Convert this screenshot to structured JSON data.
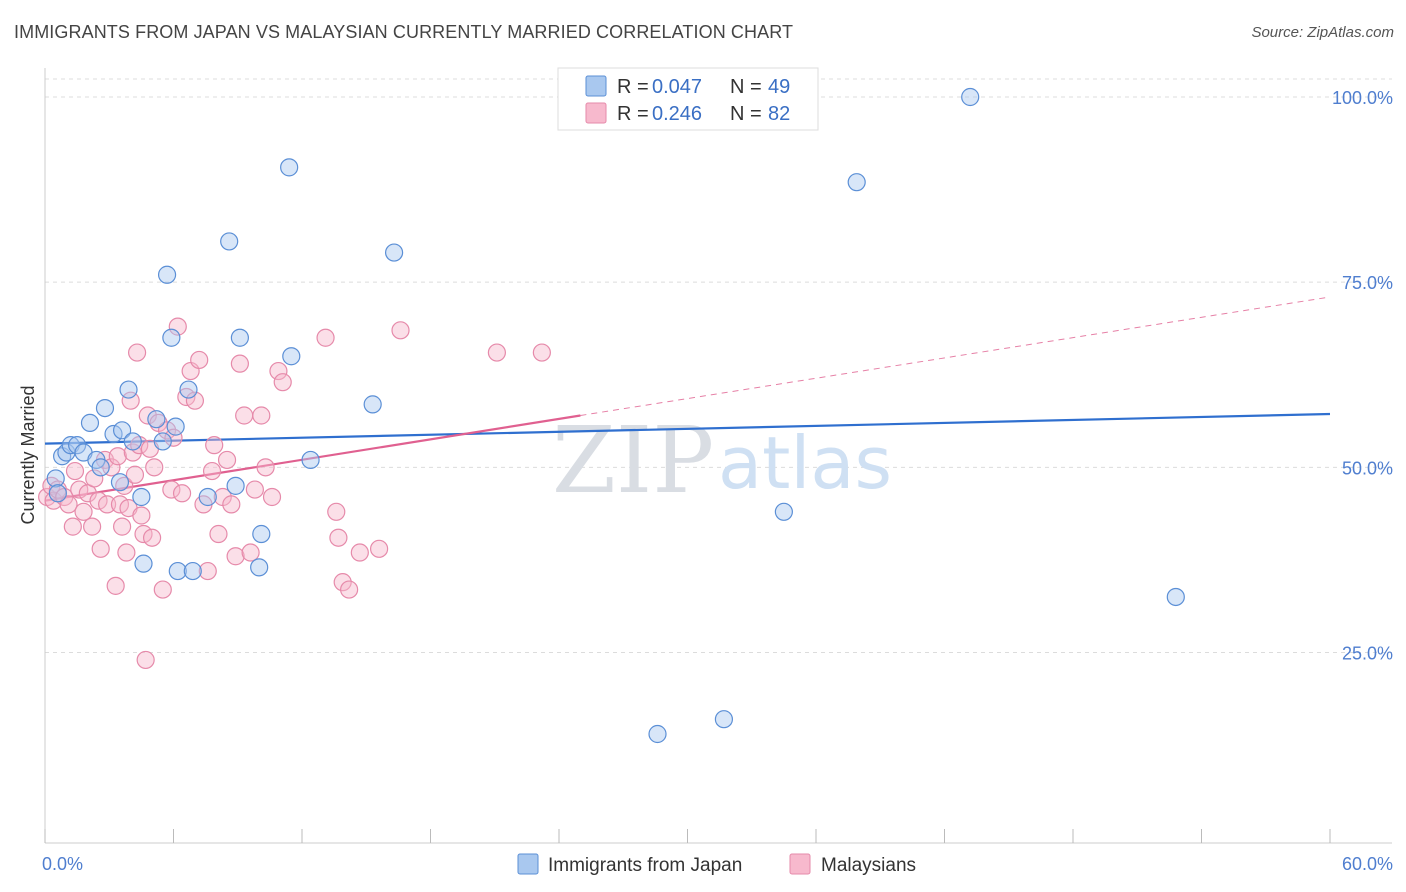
{
  "title": "IMMIGRANTS FROM JAPAN VS MALAYSIAN CURRENTLY MARRIED CORRELATION CHART",
  "source": "Source: ZipAtlas.com",
  "watermark": {
    "zip": "ZIP",
    "atlas": "atlas"
  },
  "legend": {
    "rows": [
      {
        "r_label": "R = ",
        "r_value": "0.047",
        "n_label": "N = ",
        "n_value": "49"
      },
      {
        "r_label": "R = ",
        "r_value": "0.246",
        "n_label": "N = ",
        "n_value": "82"
      }
    ]
  },
  "colors": {
    "japan_fill": "#a9c8ef",
    "japan_stroke": "#5b8fd6",
    "japan_line": "#2f6fcf",
    "malaysian_fill": "#f7b9cd",
    "malaysian_stroke": "#e68aaa",
    "malaysian_line": "#e06090"
  },
  "chart_data": {
    "type": "scatter",
    "xlabel": "",
    "ylabel": "Currently Married",
    "xlim": [
      0,
      60
    ],
    "ylim": [
      0,
      105
    ],
    "x_tick_labels": [
      {
        "value": 0,
        "label": "0.0%"
      },
      {
        "value": 60,
        "label": "60.0%"
      }
    ],
    "y_tick_labels": [
      {
        "value": 25,
        "label": "25.0%"
      },
      {
        "value": 50,
        "label": "50.0%"
      },
      {
        "value": 75,
        "label": "75.0%"
      },
      {
        "value": 100,
        "label": "100.0%"
      }
    ],
    "grid": "horizontal dashed",
    "legend_position": "top-center",
    "series": [
      {
        "name": "Immigrants from Japan",
        "trend": {
          "x": [
            0,
            60
          ],
          "y": [
            53.2,
            57.2
          ],
          "style": "solid"
        },
        "points": [
          [
            0.5,
            48.5
          ],
          [
            0.6,
            46.5
          ],
          [
            0.8,
            51.5
          ],
          [
            1.0,
            52.0
          ],
          [
            1.2,
            53.0
          ],
          [
            1.5,
            53.0
          ],
          [
            1.8,
            52.0
          ],
          [
            2.1,
            56.0
          ],
          [
            2.4,
            51.0
          ],
          [
            2.6,
            50.0
          ],
          [
            2.8,
            58.0
          ],
          [
            3.2,
            54.5
          ],
          [
            3.5,
            48.0
          ],
          [
            3.6,
            55.0
          ],
          [
            3.9,
            60.5
          ],
          [
            4.1,
            53.5
          ],
          [
            4.5,
            46.0
          ],
          [
            4.6,
            37.0
          ],
          [
            5.2,
            56.5
          ],
          [
            5.5,
            53.5
          ],
          [
            5.7,
            76.0
          ],
          [
            5.9,
            67.5
          ],
          [
            6.1,
            55.5
          ],
          [
            6.2,
            36.0
          ],
          [
            6.7,
            60.5
          ],
          [
            6.9,
            36.0
          ],
          [
            7.6,
            46.0
          ],
          [
            8.6,
            80.5
          ],
          [
            8.9,
            47.5
          ],
          [
            9.1,
            67.5
          ],
          [
            10.0,
            36.5
          ],
          [
            10.1,
            41.0
          ],
          [
            11.4,
            90.5
          ],
          [
            11.5,
            65.0
          ],
          [
            12.4,
            51.0
          ],
          [
            15.3,
            58.5
          ],
          [
            16.3,
            79.0
          ],
          [
            28.6,
            14.0
          ],
          [
            31.7,
            16.0
          ],
          [
            34.5,
            44.0
          ],
          [
            37.9,
            88.5
          ],
          [
            43.2,
            100.0
          ],
          [
            52.8,
            32.5
          ]
        ]
      },
      {
        "name": "Malaysians",
        "trend": {
          "x": [
            0,
            25
          ],
          "y": [
            45.5,
            57.0
          ],
          "style": "solid",
          "extension": {
            "x": [
              25,
              60
            ],
            "y": [
              57.0,
              73.0
            ],
            "style": "dashed"
          }
        },
        "points": [
          [
            0.1,
            46.0
          ],
          [
            0.3,
            47.5
          ],
          [
            0.4,
            45.5
          ],
          [
            0.6,
            47.0
          ],
          [
            0.9,
            46.0
          ],
          [
            1.1,
            45.0
          ],
          [
            1.3,
            42.0
          ],
          [
            1.4,
            49.5
          ],
          [
            1.6,
            47.0
          ],
          [
            1.8,
            44.0
          ],
          [
            2.0,
            46.5
          ],
          [
            2.2,
            42.0
          ],
          [
            2.3,
            48.5
          ],
          [
            2.5,
            45.5
          ],
          [
            2.6,
            39.0
          ],
          [
            2.8,
            51.0
          ],
          [
            2.9,
            45.0
          ],
          [
            3.1,
            50.0
          ],
          [
            3.3,
            34.0
          ],
          [
            3.4,
            51.5
          ],
          [
            3.5,
            45.0
          ],
          [
            3.6,
            42.0
          ],
          [
            3.7,
            47.5
          ],
          [
            3.8,
            38.5
          ],
          [
            3.9,
            44.5
          ],
          [
            4.0,
            59.0
          ],
          [
            4.1,
            52.0
          ],
          [
            4.2,
            49.0
          ],
          [
            4.3,
            65.5
          ],
          [
            4.4,
            53.0
          ],
          [
            4.5,
            43.5
          ],
          [
            4.6,
            41.0
          ],
          [
            4.7,
            24.0
          ],
          [
            4.8,
            57.0
          ],
          [
            4.9,
            52.5
          ],
          [
            5.0,
            40.5
          ],
          [
            5.1,
            50.0
          ],
          [
            5.3,
            56.0
          ],
          [
            5.5,
            33.5
          ],
          [
            5.7,
            55.0
          ],
          [
            5.9,
            47.0
          ],
          [
            6.0,
            54.0
          ],
          [
            6.2,
            69.0
          ],
          [
            6.4,
            46.5
          ],
          [
            6.6,
            59.5
          ],
          [
            6.8,
            63.0
          ],
          [
            7.0,
            59.0
          ],
          [
            7.2,
            64.5
          ],
          [
            7.4,
            45.0
          ],
          [
            7.6,
            36.0
          ],
          [
            7.8,
            49.5
          ],
          [
            7.9,
            53.0
          ],
          [
            8.1,
            41.0
          ],
          [
            8.3,
            46.0
          ],
          [
            8.5,
            51.0
          ],
          [
            8.7,
            45.0
          ],
          [
            8.9,
            38.0
          ],
          [
            9.1,
            64.0
          ],
          [
            9.3,
            57.0
          ],
          [
            9.6,
            38.5
          ],
          [
            9.8,
            47.0
          ],
          [
            10.1,
            57.0
          ],
          [
            10.3,
            50.0
          ],
          [
            10.6,
            46.0
          ],
          [
            10.9,
            63.0
          ],
          [
            11.1,
            61.5
          ],
          [
            13.1,
            67.5
          ],
          [
            13.7,
            40.5
          ],
          [
            13.9,
            34.5
          ],
          [
            14.2,
            33.5
          ],
          [
            14.7,
            38.5
          ],
          [
            15.6,
            39.0
          ],
          [
            16.6,
            68.5
          ],
          [
            21.1,
            65.5
          ],
          [
            23.2,
            65.5
          ],
          [
            13.6,
            44.0
          ]
        ]
      }
    ]
  }
}
